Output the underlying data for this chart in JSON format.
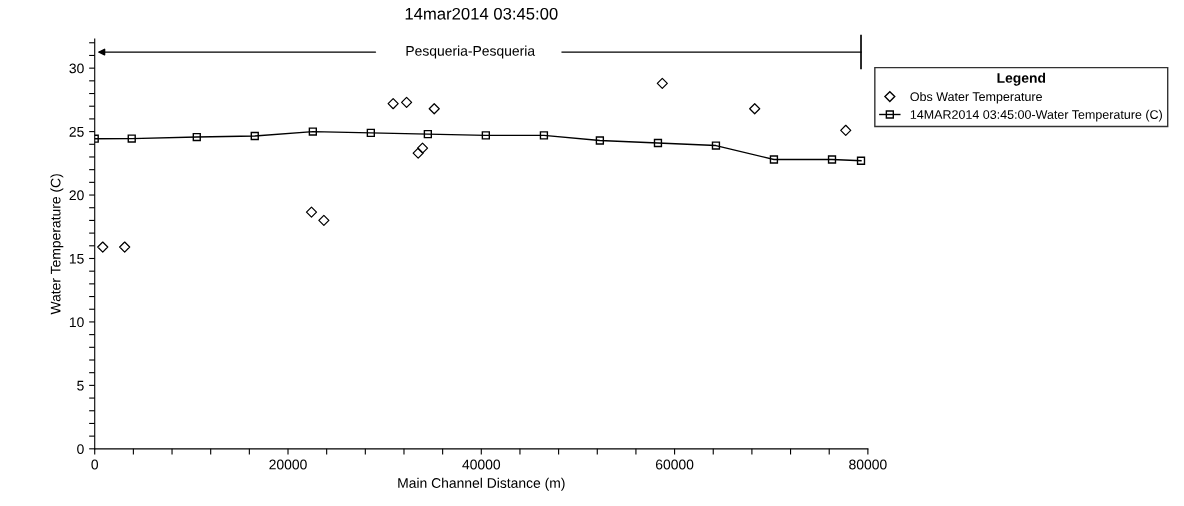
{
  "chart_data": {
    "type": "line",
    "title": "14mar2014 03:45:00",
    "xlabel": "Main Channel Distance (m)",
    "ylabel": "Water Temperature (C)",
    "annotations": [
      "Pesqueria-Pesqueria"
    ],
    "legend_title": "Legend",
    "legend": "top right",
    "xlim": [
      0,
      80000
    ],
    "ylim": [
      0,
      32.3
    ],
    "xticks": [
      0,
      {
        "value": 4000,
        "label": null
      },
      {
        "value": 8000,
        "label": null
      },
      {
        "value": 12000,
        "label": null
      },
      {
        "value": 16000,
        "label": null
      },
      20000,
      {
        "value": 24000,
        "label": null
      },
      {
        "value": 28000,
        "label": null
      },
      {
        "value": 32000,
        "label": null
      },
      {
        "value": 36000,
        "label": null
      },
      40000,
      {
        "value": 44000,
        "label": null
      },
      {
        "value": 48000,
        "label": null
      },
      {
        "value": 52000,
        "label": null
      },
      {
        "value": 56000,
        "label": null
      },
      60000,
      {
        "value": 64000,
        "label": null
      },
      {
        "value": 68000,
        "label": null
      },
      {
        "value": 72000,
        "label": null
      },
      {
        "value": 76000,
        "label": null
      },
      80000
    ],
    "yticks": [
      0,
      {
        "value": 1,
        "label": null
      },
      {
        "value": 2,
        "label": null
      },
      {
        "value": 3,
        "label": null
      },
      {
        "value": 4,
        "label": null
      },
      5,
      {
        "value": 6,
        "label": null
      },
      {
        "value": 7,
        "label": null
      },
      {
        "value": 8,
        "label": null
      },
      {
        "value": 9,
        "label": null
      },
      10,
      {
        "value": 11,
        "label": null
      },
      {
        "value": 12,
        "label": null
      },
      {
        "value": 13,
        "label": null
      },
      {
        "value": 14,
        "label": null
      },
      15,
      {
        "value": 16,
        "label": null
      },
      {
        "value": 17,
        "label": null
      },
      {
        "value": 18,
        "label": null
      },
      {
        "value": 19,
        "label": null
      },
      20,
      {
        "value": 21,
        "label": null
      },
      {
        "value": 22,
        "label": null
      },
      {
        "value": 23,
        "label": null
      },
      {
        "value": 24,
        "label": null
      },
      25,
      {
        "value": 26,
        "label": null
      },
      {
        "value": 27,
        "label": null
      },
      {
        "value": 28,
        "label": null
      },
      {
        "value": 29,
        "label": null
      },
      30,
      {
        "value": 31,
        "label": null
      },
      {
        "value": 32,
        "label": null
      }
    ],
    "grid": false,
    "series": [
      {
        "name": "Obs Water Temperature",
        "type": "scatter",
        "marker": "diamond",
        "color": "#000000",
        "x": [
          830,
          3100,
          22430,
          23710,
          30880,
          32270,
          33470,
          33920,
          35130,
          58730,
          68290,
          77710
        ],
        "values": [
          15.9,
          15.9,
          18.65,
          18.0,
          27.2,
          27.3,
          23.3,
          23.7,
          26.8,
          28.8,
          26.8,
          25.1
        ]
      },
      {
        "name": "14MAR2014 03:45:00-Water Temperature (C)",
        "marker": "square",
        "line_style": "solid",
        "color": "#000000",
        "x": [
          0,
          3830,
          10560,
          16560,
          22570,
          28570,
          34470,
          40470,
          46480,
          52270,
          58280,
          64280,
          70280,
          76290,
          79290
        ],
        "values": [
          24.44,
          24.45,
          24.57,
          24.65,
          25.0,
          24.9,
          24.8,
          24.7,
          24.7,
          24.3,
          24.1,
          23.9,
          22.8,
          22.8,
          22.7
        ]
      }
    ]
  }
}
